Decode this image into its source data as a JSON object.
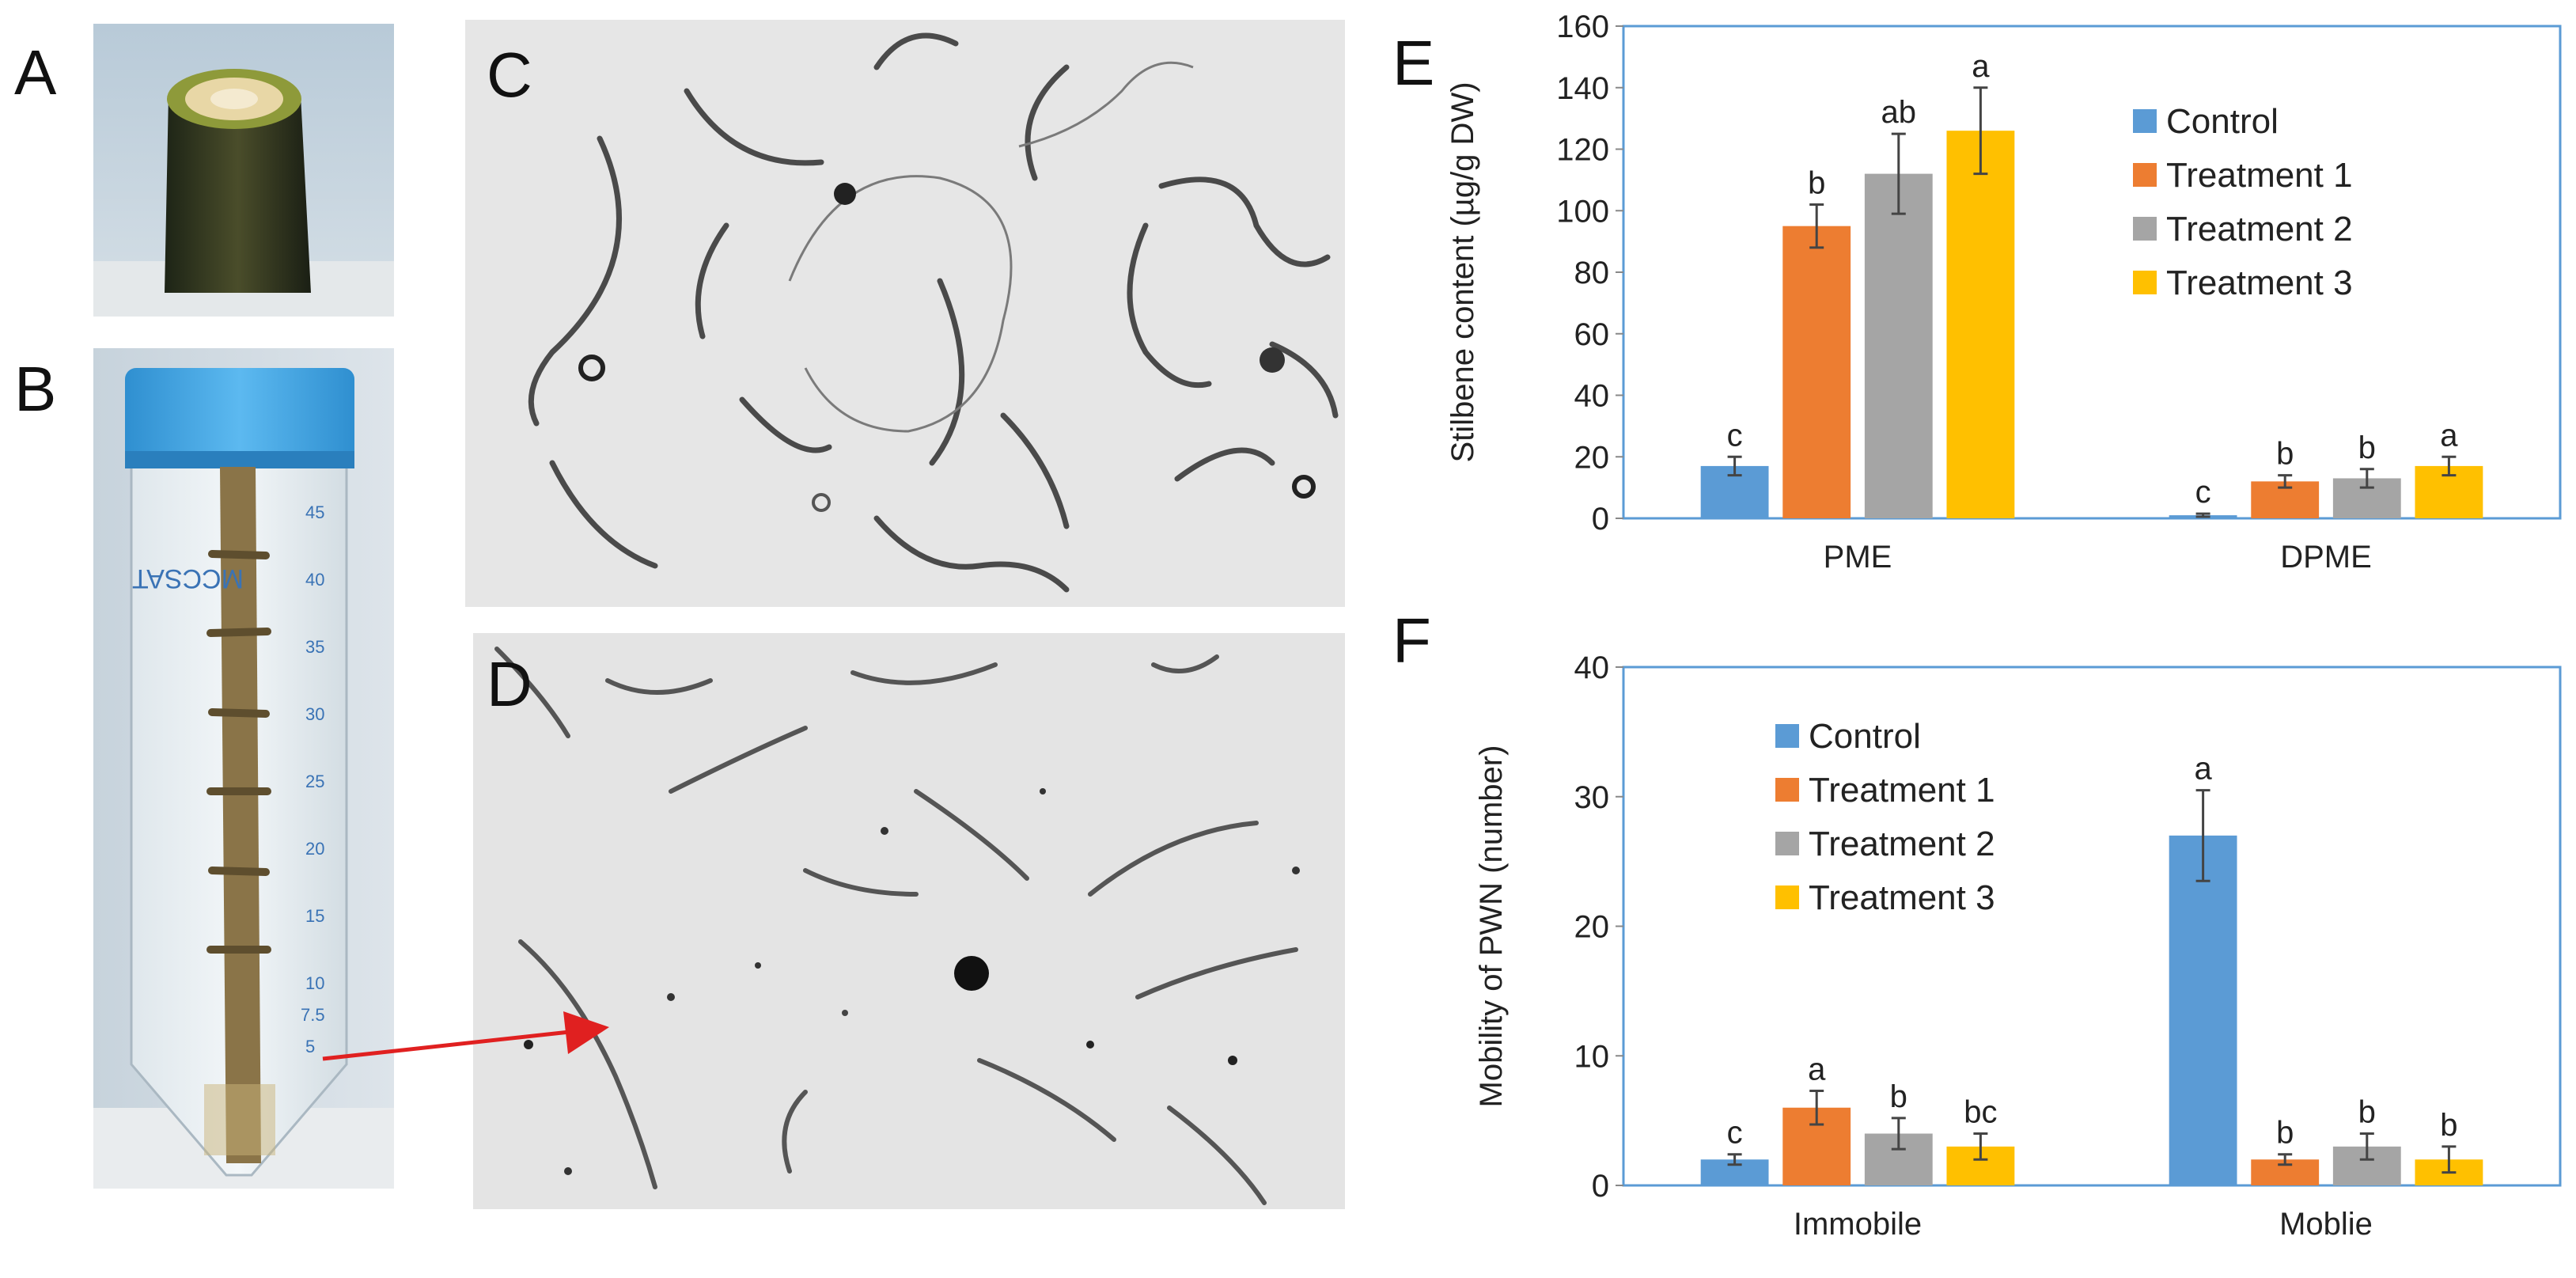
{
  "panels": {
    "a": "A",
    "b": "B",
    "c": "C",
    "d": "D",
    "e": "E",
    "f": "F"
  },
  "colors": {
    "control": "#5b9bd5",
    "treatment1": "#ed7d31",
    "treatment2": "#a5a5a5",
    "treatment3": "#ffc000",
    "frame": "#5b9bd5",
    "arrow": "#e02020"
  },
  "tube": {
    "brand": "MCCSAT",
    "scale": [
      "45",
      "40",
      "35",
      "30",
      "25",
      "20",
      "15",
      "10",
      "7.5",
      "5"
    ]
  },
  "chart_data": [
    {
      "type": "bar",
      "panel": "E",
      "title": "",
      "xlabel": "",
      "ylabel": "Stilbene content (µg/g DW)",
      "ylim": [
        0,
        160
      ],
      "yticks": [
        0,
        20,
        40,
        60,
        80,
        100,
        120,
        140,
        160
      ],
      "categories": [
        "PME",
        "DPME"
      ],
      "legend_position": "top-right",
      "series": [
        {
          "name": "Control",
          "values": [
            17,
            1
          ],
          "errors": [
            3,
            0.5
          ],
          "letters": [
            "c",
            "c"
          ]
        },
        {
          "name": "Treatment 1",
          "values": [
            95,
            12
          ],
          "errors": [
            7,
            2
          ],
          "letters": [
            "b",
            "b"
          ]
        },
        {
          "name": "Treatment 2",
          "values": [
            112,
            13
          ],
          "errors": [
            13,
            3
          ],
          "letters": [
            "ab",
            "b"
          ]
        },
        {
          "name": "Treatment 3",
          "values": [
            126,
            17
          ],
          "errors": [
            14,
            3
          ],
          "letters": [
            "a",
            "a"
          ]
        }
      ]
    },
    {
      "type": "bar",
      "panel": "F",
      "title": "",
      "xlabel": "",
      "ylabel": "Mobility of PWN (number)",
      "ylim": [
        0,
        40
      ],
      "yticks": [
        0,
        10,
        20,
        30,
        40
      ],
      "categories": [
        "Immobile",
        "Moblie"
      ],
      "legend_position": "top-left",
      "series": [
        {
          "name": "Control",
          "values": [
            2,
            27
          ],
          "errors": [
            0.4,
            3.5
          ],
          "letters": [
            "c",
            "a"
          ]
        },
        {
          "name": "Treatment 1",
          "values": [
            6,
            2
          ],
          "errors": [
            1.3,
            0.4
          ],
          "letters": [
            "a",
            "b"
          ]
        },
        {
          "name": "Treatment 2",
          "values": [
            4,
            3
          ],
          "errors": [
            1.2,
            1
          ],
          "letters": [
            "b",
            "b"
          ]
        },
        {
          "name": "Treatment 3",
          "values": [
            3,
            2
          ],
          "errors": [
            1,
            1
          ],
          "letters": [
            "bc",
            "b"
          ]
        }
      ]
    }
  ]
}
